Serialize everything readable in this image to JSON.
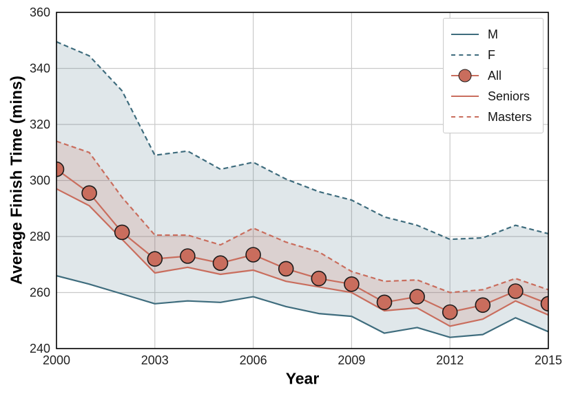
{
  "chart_data": {
    "type": "line",
    "title": "",
    "xlabel": "Year",
    "ylabel": "Average Finish Time (mins)",
    "xlim": [
      2000,
      2015
    ],
    "ylim": [
      240,
      360
    ],
    "x_ticks": [
      2000,
      2003,
      2006,
      2009,
      2012,
      2015
    ],
    "y_ticks": [
      240,
      260,
      280,
      300,
      320,
      340,
      360
    ],
    "grid": true,
    "grid_color": "#c9c9c9",
    "border_color": "#000000",
    "tick_label_color": "#1f1f1f",
    "legend_position": "upper right",
    "x": [
      2000,
      2001,
      2002,
      2003,
      2004,
      2005,
      2006,
      2007,
      2008,
      2009,
      2010,
      2011,
      2012,
      2013,
      2014,
      2015
    ],
    "series": [
      {
        "name": "M",
        "style": "solid",
        "color": "#3e6c7d",
        "values": [
          266,
          263,
          259.5,
          256,
          257,
          256.5,
          258.5,
          255,
          252.5,
          251.5,
          245.5,
          247.5,
          244,
          245,
          251,
          246
        ]
      },
      {
        "name": "F",
        "style": "dashed",
        "color": "#3e6c7d",
        "values": [
          349.5,
          344.5,
          332,
          309,
          310.5,
          304,
          306.5,
          300.5,
          296,
          293,
          287,
          284,
          279,
          279.5,
          284,
          281
        ]
      },
      {
        "name": "All",
        "style": "solid-marker",
        "color": "#c96d5d",
        "marker": "circle",
        "marker_fill": "#c96d5d",
        "marker_edge": "#1a1a1a",
        "values": [
          304,
          295.5,
          281.5,
          272,
          273,
          270.5,
          273.5,
          268.5,
          265,
          263,
          256.5,
          258.5,
          253,
          255.5,
          260.5,
          256
        ]
      },
      {
        "name": "Seniors",
        "style": "solid",
        "color": "#c96d5d",
        "values": [
          297,
          291,
          279,
          267,
          269,
          266.5,
          268,
          264,
          262,
          260,
          253.5,
          254.5,
          248,
          250.5,
          257,
          252
        ]
      },
      {
        "name": "Masters",
        "style": "dashed",
        "color": "#c96d5d",
        "values": [
          314,
          310,
          294,
          280.5,
          280.5,
          277,
          283,
          278,
          274.5,
          267.5,
          264,
          264.5,
          260,
          261,
          265,
          261
        ]
      }
    ],
    "bands": [
      {
        "upper": "F",
        "lower": "M",
        "fill": "rgba(62,108,125,0.16)"
      },
      {
        "upper": "Masters",
        "lower": "Seniors",
        "fill": "rgba(201,109,93,0.18)"
      }
    ]
  },
  "legend": {
    "items": [
      {
        "label": "M"
      },
      {
        "label": "F"
      },
      {
        "label": "All"
      },
      {
        "label": "Seniors"
      },
      {
        "label": "Masters"
      }
    ]
  }
}
